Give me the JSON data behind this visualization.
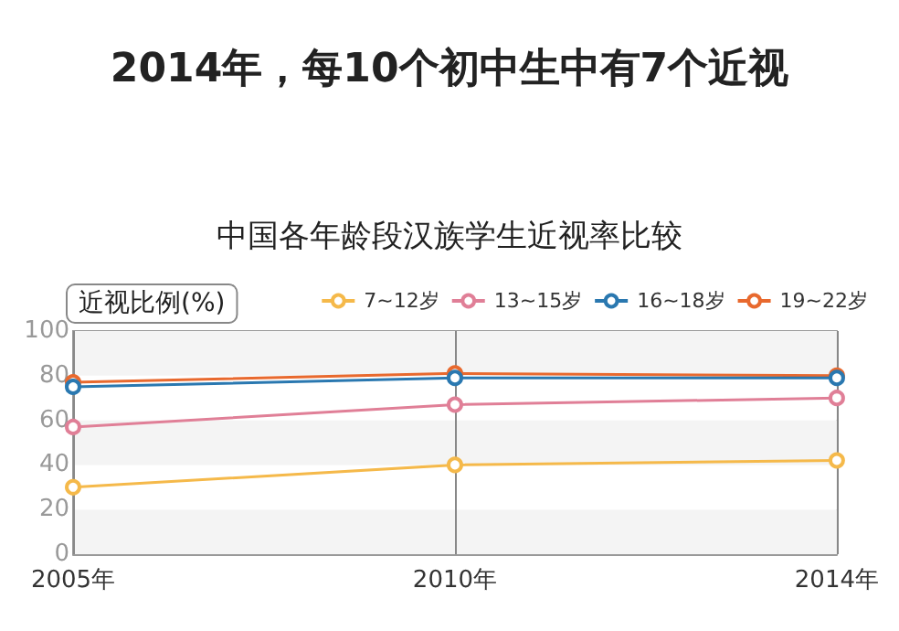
{
  "chart_data": {
    "type": "line",
    "title": "2014年，每10个初中生中有7个近视",
    "subtitle": "中国各年龄段汉族学生近视率比较",
    "ylabel": "近视比例(%)",
    "categories": [
      "2005年",
      "2010年",
      "2014年"
    ],
    "series": [
      {
        "name": "7~12岁",
        "color": "#f5b94a",
        "values": [
          30,
          40,
          42
        ]
      },
      {
        "name": "13~15岁",
        "color": "#e07f97",
        "values": [
          57,
          67,
          70
        ]
      },
      {
        "name": "16~18岁",
        "color": "#2a78b0",
        "values": [
          75,
          79,
          79
        ]
      },
      {
        "name": "19~22岁",
        "color": "#e8692e",
        "values": [
          77,
          81,
          80
        ]
      }
    ],
    "ylim": [
      0,
      100
    ],
    "yticks": [
      0,
      20,
      40,
      60,
      80,
      100
    ],
    "grid": true,
    "legend": "top right",
    "marker": "circle",
    "line_style": "solid"
  }
}
